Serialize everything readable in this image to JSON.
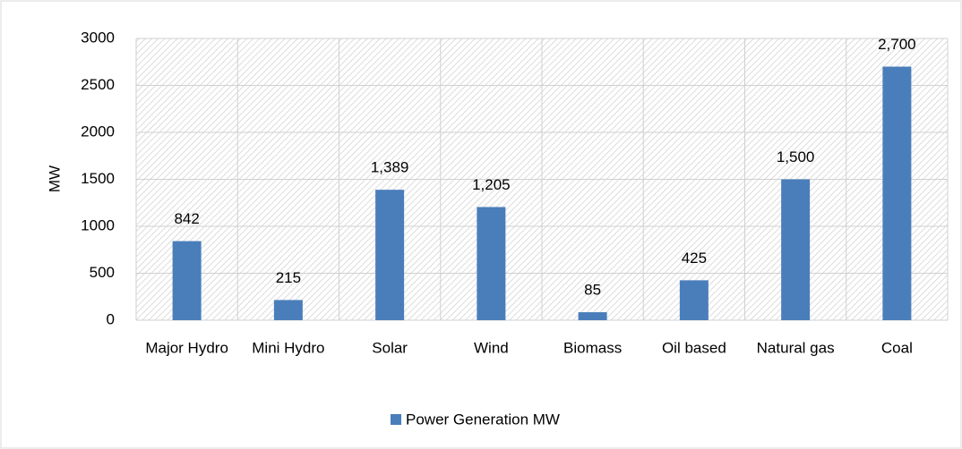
{
  "chart_data": {
    "type": "bar",
    "categories": [
      "Major Hydro",
      "Mini Hydro",
      "Solar",
      "Wind",
      "Biomass",
      "Oil based",
      "Natural gas",
      "Coal"
    ],
    "series": [
      {
        "name": "Power Generation MW",
        "color": "#4a7ebb",
        "values": [
          842,
          215,
          1389,
          1205,
          85,
          425,
          1500,
          2700
        ],
        "value_labels": [
          "842",
          "215",
          "1,389",
          "1,205",
          "85",
          "425",
          "1,500",
          "2,700"
        ]
      }
    ],
    "y_label": "MW",
    "ylim": [
      0,
      3000
    ],
    "yticks": [
      0,
      500,
      1000,
      1500,
      2000,
      2500,
      3000
    ],
    "grid": true,
    "legend": "bottom"
  }
}
